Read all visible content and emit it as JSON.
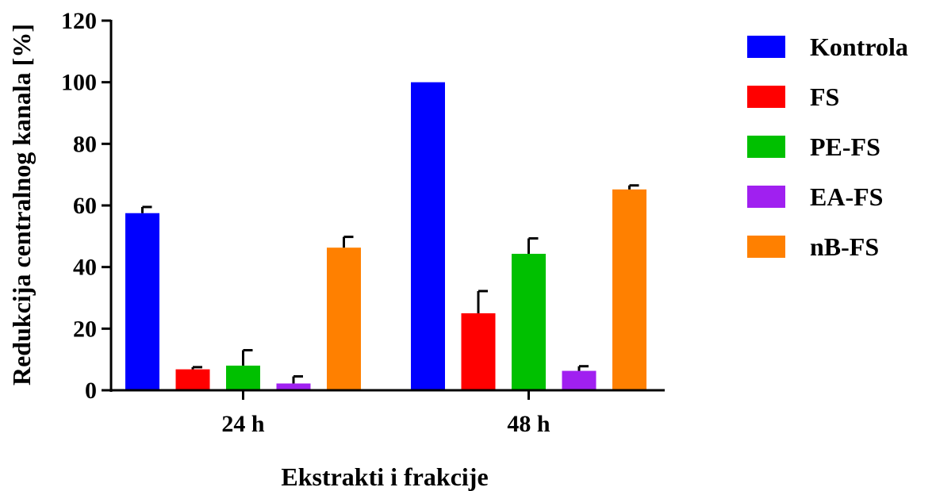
{
  "chart_data": {
    "type": "bar",
    "title": "",
    "xlabel": "Ekstrakti i frakcije",
    "ylabel": "Redukcija centralnog kanala [%]",
    "ylim": [
      0,
      120
    ],
    "yticks": [
      0,
      20,
      40,
      60,
      80,
      100,
      120
    ],
    "categories": [
      "24 h",
      "48 h"
    ],
    "legend_position": "right",
    "grid": false,
    "series": [
      {
        "name": "Kontrola",
        "color": "#0000FF",
        "values": [
          57.5,
          100
        ],
        "errors": [
          2,
          0
        ]
      },
      {
        "name": "FS",
        "color": "#FF0000",
        "values": [
          6.8,
          25
        ],
        "errors": [
          0.7,
          7.2
        ]
      },
      {
        "name": "PE-FS",
        "color": "#00C000",
        "values": [
          8,
          44.3
        ],
        "errors": [
          5,
          5
        ]
      },
      {
        "name": "EA-FS",
        "color": "#A020F0",
        "values": [
          2.2,
          6.3
        ],
        "errors": [
          2.3,
          1.5
        ]
      },
      {
        "name": "nB-FS",
        "color": "#FF8000",
        "values": [
          46.3,
          65.2
        ],
        "errors": [
          3.5,
          1.3
        ]
      }
    ]
  }
}
